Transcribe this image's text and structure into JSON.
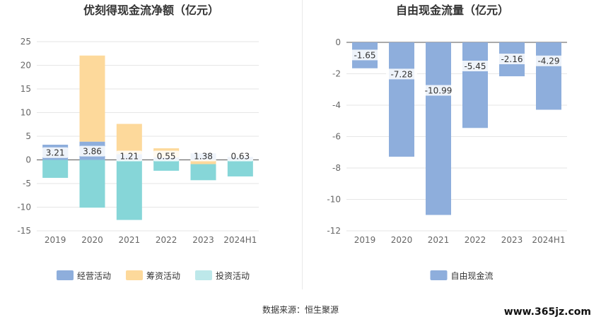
{
  "footer": {
    "source": "数据来源：恒生聚源",
    "watermark": "www.365jz.com"
  },
  "chart_data": [
    {
      "type": "bar",
      "stacked": true,
      "title": "优刻得现金流净额（亿元）",
      "categories": [
        "2019",
        "2020",
        "2021",
        "2022",
        "2023",
        "2024H1"
      ],
      "ylim": [
        -15,
        25
      ],
      "yticks": [
        -15,
        -10,
        -5,
        0,
        5,
        10,
        15,
        20,
        25
      ],
      "grid": true,
      "legend_position": "bottom",
      "colors": {
        "经营活动": "#8eaedc",
        "筹资活动": "#fdd99b",
        "投资活动": "#86d6d8"
      },
      "series": [
        {
          "name": "经营活动",
          "values": [
            3.21,
            3.86,
            1.21,
            0.55,
            1.38,
            0.63
          ],
          "labels": [
            "3.21",
            "3.86",
            "1.21",
            "0.55",
            "1.38",
            "0.63"
          ]
        },
        {
          "name": "筹资活动",
          "values": [
            0,
            18.2,
            6.4,
            1.9,
            -0.9,
            0
          ]
        },
        {
          "name": "投资活动",
          "values": [
            -3.8,
            -10.1,
            -12.7,
            -2.3,
            -3.4,
            -3.5
          ]
        }
      ]
    },
    {
      "type": "bar",
      "title": "自由现金流量（亿元）",
      "categories": [
        "2019",
        "2020",
        "2021",
        "2022",
        "2023",
        "2024H1"
      ],
      "ylim": [
        -12,
        0
      ],
      "yticks": [
        -12,
        -10,
        -8,
        -6,
        -4,
        -2,
        0
      ],
      "grid": true,
      "legend_position": "bottom",
      "colors": {
        "自由现金流": "#8eaedc"
      },
      "series": [
        {
          "name": "自由现金流",
          "values": [
            -1.65,
            -7.28,
            -10.99,
            -5.45,
            -2.16,
            -4.29
          ],
          "labels": [
            "-1.65",
            "-7.28",
            "-10.99",
            "-5.45",
            "-2.16",
            "-4.29"
          ]
        }
      ]
    }
  ]
}
